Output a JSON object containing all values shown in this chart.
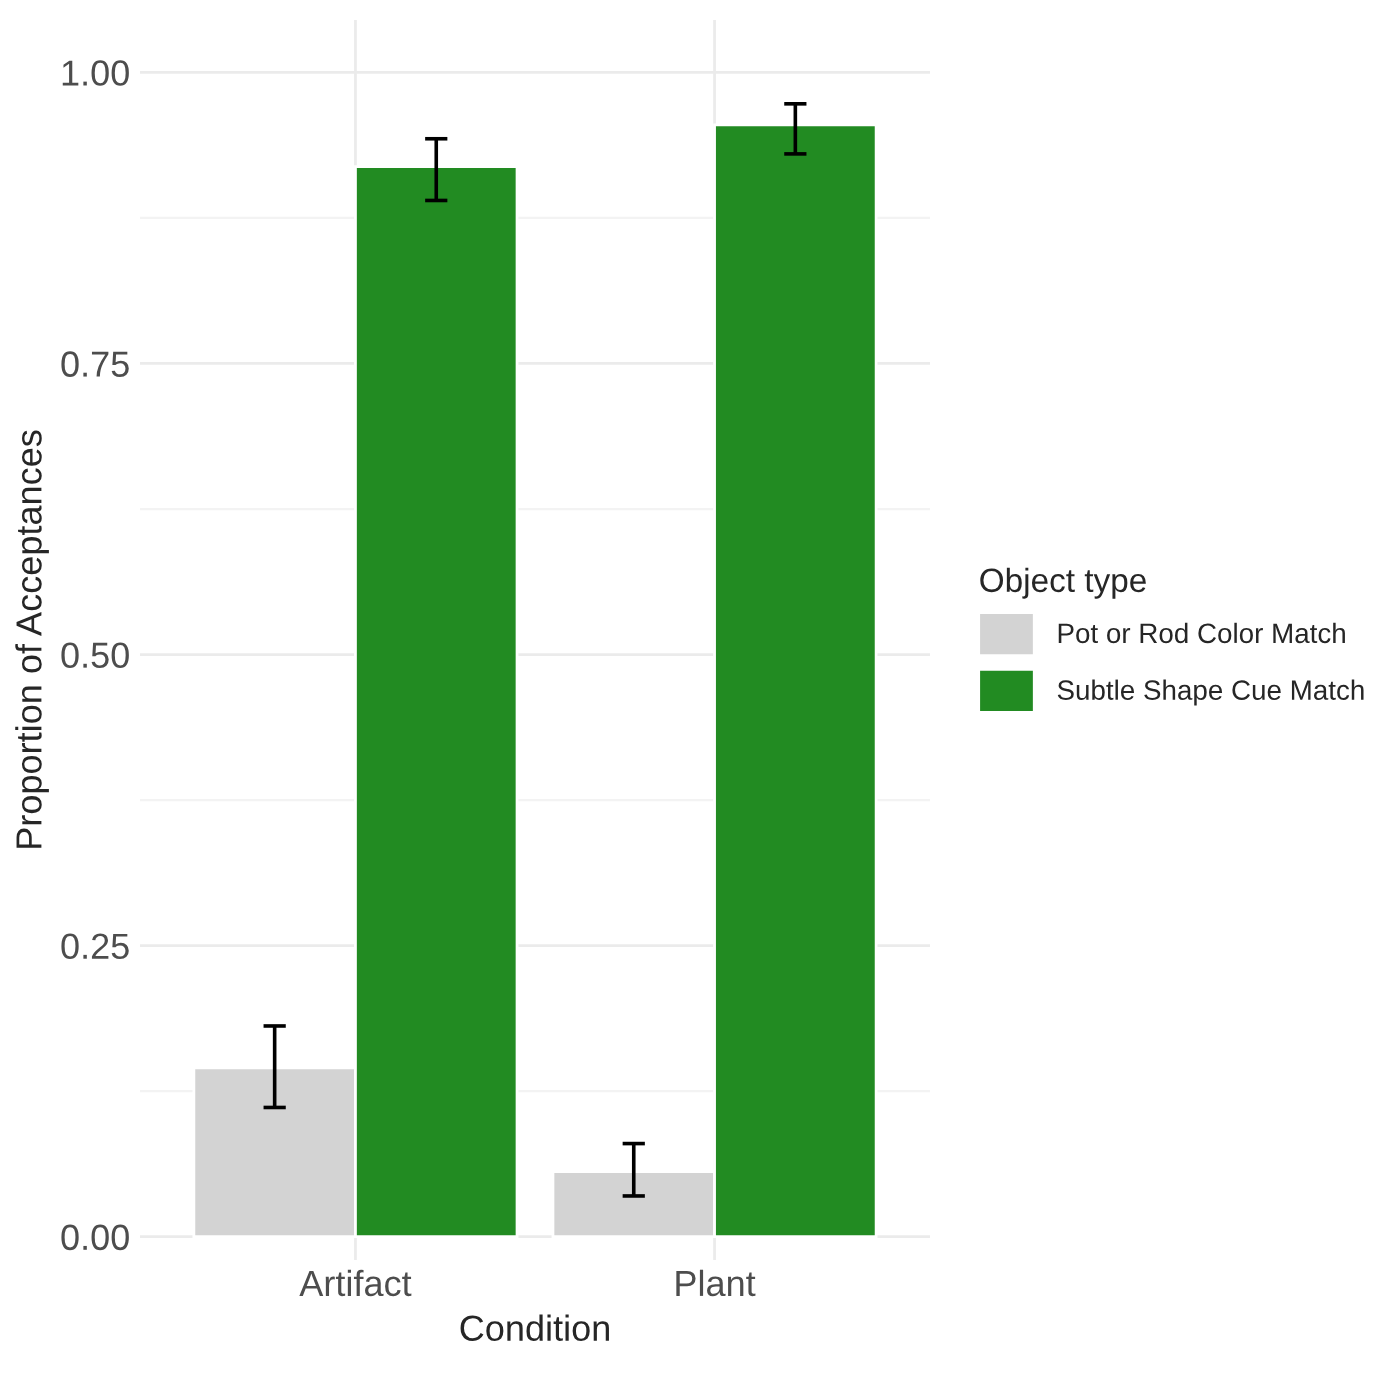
{
  "chart_data": {
    "type": "bar",
    "xlabel": "Condition",
    "ylabel": "Proportion of Acceptances",
    "legend_title": "Object type",
    "categories": [
      "Artifact",
      "Plant"
    ],
    "series": [
      {
        "name": "Pot or Rod Color Match",
        "color": "#d3d3d3",
        "values": [
          0.145,
          0.056
        ],
        "errors": [
          [
            0.111,
            0.181
          ],
          [
            0.035,
            0.08
          ]
        ]
      },
      {
        "name": "Subtle Shape Cue Match",
        "color": "#228b22",
        "values": [
          0.919,
          0.955
        ],
        "errors": [
          [
            0.89,
            0.943
          ],
          [
            0.93,
            0.973
          ]
        ]
      }
    ],
    "ylim": [
      -0.02,
      1.045
    ],
    "yticks": [
      {
        "value": 0,
        "label": "0.00"
      },
      {
        "value": 0.25,
        "label": "0.25"
      },
      {
        "value": 0.5,
        "label": "0.50"
      },
      {
        "value": 0.75,
        "label": "0.75"
      },
      {
        "value": 1,
        "label": "1.00"
      }
    ],
    "grid": true,
    "legend": "right"
  }
}
